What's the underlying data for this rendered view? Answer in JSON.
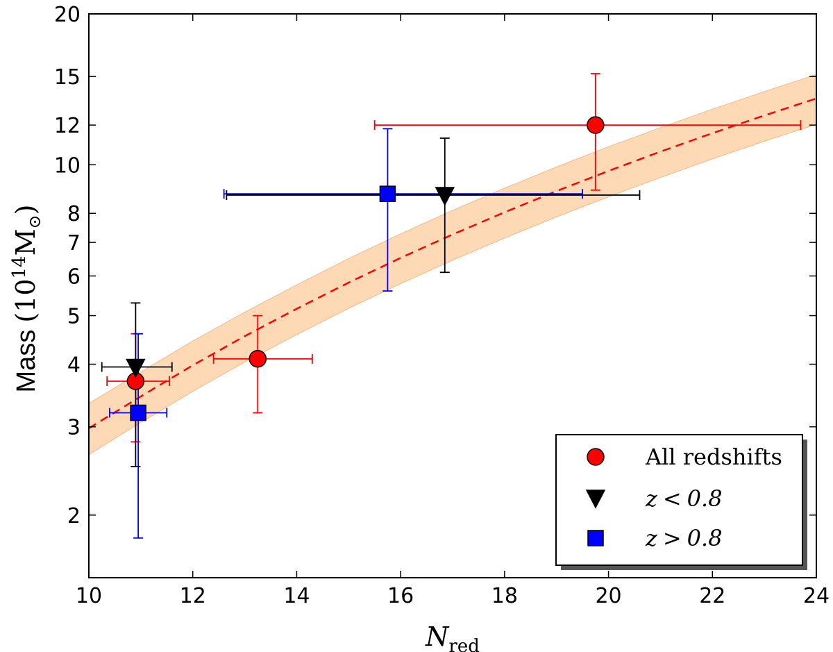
{
  "chart_data": {
    "type": "scatter",
    "title": "",
    "xlabel": {
      "main": "N",
      "sub": "red"
    },
    "ylabel": {
      "text": "Mass",
      "unit_prefix": "(10",
      "unit_exp": "14",
      "unit_mid": "M",
      "unit_sub": "⊙",
      "unit_suffix": ")"
    },
    "xlim": [
      10,
      24
    ],
    "ylim": [
      1.5,
      20
    ],
    "yscale": "log",
    "x_ticks": [
      10,
      12,
      14,
      16,
      18,
      20,
      22,
      24
    ],
    "x_tick_labels": [
      "10",
      "12",
      "14",
      "16",
      "18",
      "20",
      "22",
      "24"
    ],
    "y_ticks": [
      2,
      3,
      4,
      5,
      6,
      7,
      8,
      10,
      12,
      15,
      20
    ],
    "y_tick_labels": [
      "2",
      "3",
      "4",
      "5",
      "6",
      "7",
      "8",
      "10",
      "12",
      "15",
      "20"
    ],
    "fit": {
      "name": "best fit",
      "style": "dashed",
      "color": "#ff0000",
      "band_color": "#fdd9b5",
      "points": [
        {
          "x": 10,
          "y": 2.98,
          "lo": 2.64,
          "hi": 3.34
        },
        {
          "x": 11,
          "y": 3.45,
          "lo": 3.06,
          "hi": 3.86
        },
        {
          "x": 12,
          "y": 3.98,
          "lo": 3.53,
          "hi": 4.45
        },
        {
          "x": 13,
          "y": 4.55,
          "lo": 4.04,
          "hi": 5.08
        },
        {
          "x": 14,
          "y": 5.16,
          "lo": 4.58,
          "hi": 5.76
        },
        {
          "x": 15,
          "y": 5.82,
          "lo": 5.17,
          "hi": 6.5
        },
        {
          "x": 16,
          "y": 6.52,
          "lo": 5.79,
          "hi": 7.28
        },
        {
          "x": 17,
          "y": 7.26,
          "lo": 6.45,
          "hi": 8.11
        },
        {
          "x": 18,
          "y": 8.04,
          "lo": 7.14,
          "hi": 8.98
        },
        {
          "x": 19,
          "y": 8.86,
          "lo": 7.87,
          "hi": 9.9
        },
        {
          "x": 20,
          "y": 9.72,
          "lo": 8.63,
          "hi": 10.86
        },
        {
          "x": 21,
          "y": 10.62,
          "lo": 9.43,
          "hi": 11.86
        },
        {
          "x": 22,
          "y": 11.56,
          "lo": 10.27,
          "hi": 12.91
        },
        {
          "x": 23,
          "y": 12.54,
          "lo": 11.14,
          "hi": 14.0
        },
        {
          "x": 24,
          "y": 13.56,
          "lo": 12.04,
          "hi": 15.14
        }
      ]
    },
    "series": [
      {
        "name": "All redshifts",
        "marker": "circle",
        "color": "#ff0000",
        "points": [
          {
            "x": 10.9,
            "y": 3.7,
            "xerr": [
              10.35,
              11.55
            ],
            "yerr": [
              2.8,
              4.6
            ]
          },
          {
            "x": 13.25,
            "y": 4.1,
            "xerr": [
              12.4,
              14.3
            ],
            "yerr": [
              3.2,
              5.0
            ]
          },
          {
            "x": 19.75,
            "y": 12.0,
            "xerr": [
              15.5,
              23.7
            ],
            "yerr": [
              8.9,
              15.2
            ]
          }
        ]
      },
      {
        "name": "z < 0.8",
        "marker": "triangle-down",
        "color": "#000000",
        "points": [
          {
            "x": 10.9,
            "y": 3.95,
            "xerr": [
              10.25,
              11.6
            ],
            "yerr": [
              2.5,
              5.3
            ]
          },
          {
            "x": 16.85,
            "y": 8.7,
            "xerr": [
              12.65,
              20.6
            ],
            "yerr": [
              6.1,
              11.3
            ]
          }
        ]
      },
      {
        "name": "z > 0.8",
        "marker": "square",
        "color": "#0000ff",
        "points": [
          {
            "x": 10.95,
            "y": 3.2,
            "xerr": [
              10.4,
              11.5
            ],
            "yerr": [
              1.8,
              4.6
            ]
          },
          {
            "x": 15.75,
            "y": 8.75,
            "xerr": [
              12.6,
              19.5
            ],
            "yerr": [
              5.6,
              11.8
            ]
          }
        ]
      }
    ],
    "legend": {
      "position": "lower-right",
      "entries": [
        {
          "marker": "circle",
          "color": "#ff0000",
          "label": "All redshifts",
          "math": false
        },
        {
          "marker": "triangle-down",
          "color": "#000000",
          "label": "z < 0.8",
          "math": true,
          "var": "z",
          "op": "<",
          "val": "0.8"
        },
        {
          "marker": "square",
          "color": "#0000ff",
          "label": "z > 0.8",
          "math": true,
          "var": "z",
          "op": ">",
          "val": "0.8"
        }
      ]
    }
  }
}
